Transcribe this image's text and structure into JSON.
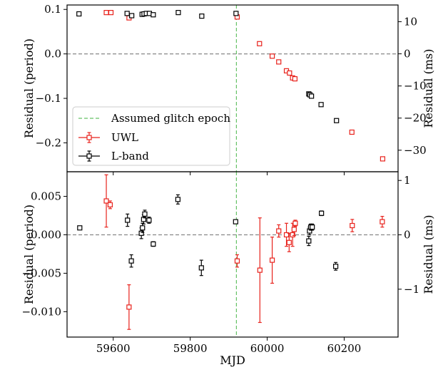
{
  "chart_data": [
    {
      "type": "scatter",
      "panel": "top",
      "xlabel": "",
      "ylabel": "Residual (period)",
      "ylabel_right": "Residual (ms)",
      "xlim": [
        59480,
        60340
      ],
      "ylim": [
        -0.265,
        0.11
      ],
      "ylim_right": [
        -36.7,
        15.2
      ],
      "yticks": [
        0.1,
        0.0,
        -0.1,
        -0.2
      ],
      "ytick_labels": [
        "0.1",
        "0.0",
        "−0.1",
        "−0.2"
      ],
      "yticks_right": [
        10,
        0,
        -10,
        -20,
        -30
      ],
      "ytick_labels_right": [
        "10",
        "0",
        "−10",
        "−20",
        "−30"
      ],
      "hline": 0,
      "vline": {
        "x": 59920,
        "label": "Assumed glitch epoch",
        "color": "#66c266"
      },
      "legend": {
        "placement": "center-left",
        "entries": [
          "Assumed glitch epoch",
          "UWL",
          "L-band"
        ]
      },
      "series": [
        {
          "name": "UWL",
          "color": "#e8221c",
          "marker": "open-square",
          "points": [
            {
              "x": 59582,
              "y": 0.093,
              "e": 0.0
            },
            {
              "x": 59594,
              "y": 0.093,
              "e": 0.0
            },
            {
              "x": 59641,
              "y": 0.081,
              "e": 0.0
            },
            {
              "x": 59922,
              "y": 0.083,
              "e": 0.0
            },
            {
              "x": 59980,
              "y": 0.023,
              "e": 0.0035
            },
            {
              "x": 60013,
              "y": -0.005,
              "e": 0.0
            },
            {
              "x": 60030,
              "y": -0.018,
              "e": 0.0
            },
            {
              "x": 60050,
              "y": -0.038,
              "e": 0.0
            },
            {
              "x": 60058,
              "y": -0.043,
              "e": 0.0
            },
            {
              "x": 60066,
              "y": -0.054,
              "e": 0.0
            },
            {
              "x": 60072,
              "y": -0.056,
              "e": 0.0
            },
            {
              "x": 60220,
              "y": -0.176,
              "e": 0.0
            },
            {
              "x": 60300,
              "y": -0.236,
              "e": 0.0
            }
          ]
        },
        {
          "name": "L-band",
          "color": "#000000",
          "marker": "open-square",
          "points": [
            {
              "x": 59511,
              "y": 0.09,
              "e": 0.0
            },
            {
              "x": 59636,
              "y": 0.091,
              "e": 0.0
            },
            {
              "x": 59648,
              "y": 0.086,
              "e": 0.0
            },
            {
              "x": 59675,
              "y": 0.089,
              "e": 0.0
            },
            {
              "x": 59680,
              "y": 0.09,
              "e": 0.0
            },
            {
              "x": 59686,
              "y": 0.091,
              "e": 0.0
            },
            {
              "x": 59694,
              "y": 0.091,
              "e": 0.0
            },
            {
              "x": 59704,
              "y": 0.088,
              "e": 0.0
            },
            {
              "x": 59769,
              "y": 0.093,
              "e": 0.0
            },
            {
              "x": 59830,
              "y": 0.085,
              "e": 0.0
            },
            {
              "x": 59919,
              "y": 0.091,
              "e": 0.0
            },
            {
              "x": 60108,
              "y": -0.09,
              "e": 0.0
            },
            {
              "x": 60111,
              "y": -0.092,
              "e": 0.0
            },
            {
              "x": 60115,
              "y": -0.095,
              "e": 0.0
            },
            {
              "x": 60140,
              "y": -0.114,
              "e": 0.0
            },
            {
              "x": 60180,
              "y": -0.15,
              "e": 0.0
            }
          ]
        }
      ]
    },
    {
      "type": "scatter",
      "panel": "bottom",
      "xlabel": "MJD",
      "ylabel": "Residual (period)",
      "ylabel_right": "Residual (ms)",
      "xlim": [
        59480,
        60340
      ],
      "xticks": [
        59600,
        59800,
        60000,
        60200
      ],
      "xtick_labels": [
        "59600",
        "59800",
        "60000",
        "60200"
      ],
      "ylim": [
        -0.0133,
        0.0082
      ],
      "ylim_right": [
        -1.88,
        1.16
      ],
      "yticks": [
        0.005,
        0.0,
        -0.005,
        -0.01
      ],
      "ytick_labels": [
        "0.005",
        "0.000",
        "−0.005",
        "−0.010"
      ],
      "yticks_right": [
        1,
        0,
        -1
      ],
      "ytick_labels_right": [
        "1",
        "0",
        "−1"
      ],
      "hline": 0,
      "vline": {
        "x": 59920,
        "color": "#66c266"
      },
      "series": [
        {
          "name": "UWL",
          "color": "#e8221c",
          "marker": "open-square",
          "points": [
            {
              "x": 59582,
              "y": 0.0044,
              "e": 0.0034
            },
            {
              "x": 59592,
              "y": 0.0039,
              "e": 0.0005
            },
            {
              "x": 59641,
              "y": -0.0094,
              "e": 0.0029
            },
            {
              "x": 59922,
              "y": -0.0034,
              "e": 0.0008
            },
            {
              "x": 59981,
              "y": -0.0046,
              "e": 0.0068
            },
            {
              "x": 60013,
              "y": -0.0033,
              "e": 0.003
            },
            {
              "x": 60030,
              "y": 0.0005,
              "e": 0.0008
            },
            {
              "x": 60050,
              "y": 0.0,
              "e": 0.0015
            },
            {
              "x": 60057,
              "y": -0.001,
              "e": 0.0012
            },
            {
              "x": 60066,
              "y": 0.0,
              "e": 0.0015
            },
            {
              "x": 60070,
              "y": 0.0007,
              "e": 0.0008
            },
            {
              "x": 60073,
              "y": 0.0015,
              "e": 0.0004
            },
            {
              "x": 60221,
              "y": 0.0012,
              "e": 0.0008
            },
            {
              "x": 60299,
              "y": 0.0017,
              "e": 0.0007
            }
          ]
        },
        {
          "name": "L-band",
          "color": "#000000",
          "marker": "open-square",
          "points": [
            {
              "x": 59513,
              "y": 0.0009,
              "e": 0.0002
            },
            {
              "x": 59637,
              "y": 0.0019,
              "e": 0.0008
            },
            {
              "x": 59647,
              "y": -0.0034,
              "e": 0.0008
            },
            {
              "x": 59673,
              "y": 0.0002,
              "e": 0.0007
            },
            {
              "x": 59676,
              "y": 0.0009,
              "e": 0.0006
            },
            {
              "x": 59679,
              "y": 0.002,
              "e": 0.0006
            },
            {
              "x": 59682,
              "y": 0.0027,
              "e": 0.0005
            },
            {
              "x": 59693,
              "y": 0.0019,
              "e": 0.0004
            },
            {
              "x": 59704,
              "y": -0.0012,
              "e": 0.0003
            },
            {
              "x": 59768,
              "y": 0.0046,
              "e": 0.0006
            },
            {
              "x": 59829,
              "y": -0.0043,
              "e": 0.001
            },
            {
              "x": 59918,
              "y": 0.0017,
              "e": 0.0002
            },
            {
              "x": 60108,
              "y": -0.0008,
              "e": 0.0006
            },
            {
              "x": 60110,
              "y": 0.0005,
              "e": 0.0005
            },
            {
              "x": 60113,
              "y": 0.001,
              "e": 0.0004
            },
            {
              "x": 60117,
              "y": 0.001,
              "e": 0.0004
            },
            {
              "x": 60141,
              "y": 0.0028,
              "e": 0.0003
            },
            {
              "x": 60178,
              "y": -0.0041,
              "e": 0.0005
            }
          ]
        }
      ]
    }
  ]
}
